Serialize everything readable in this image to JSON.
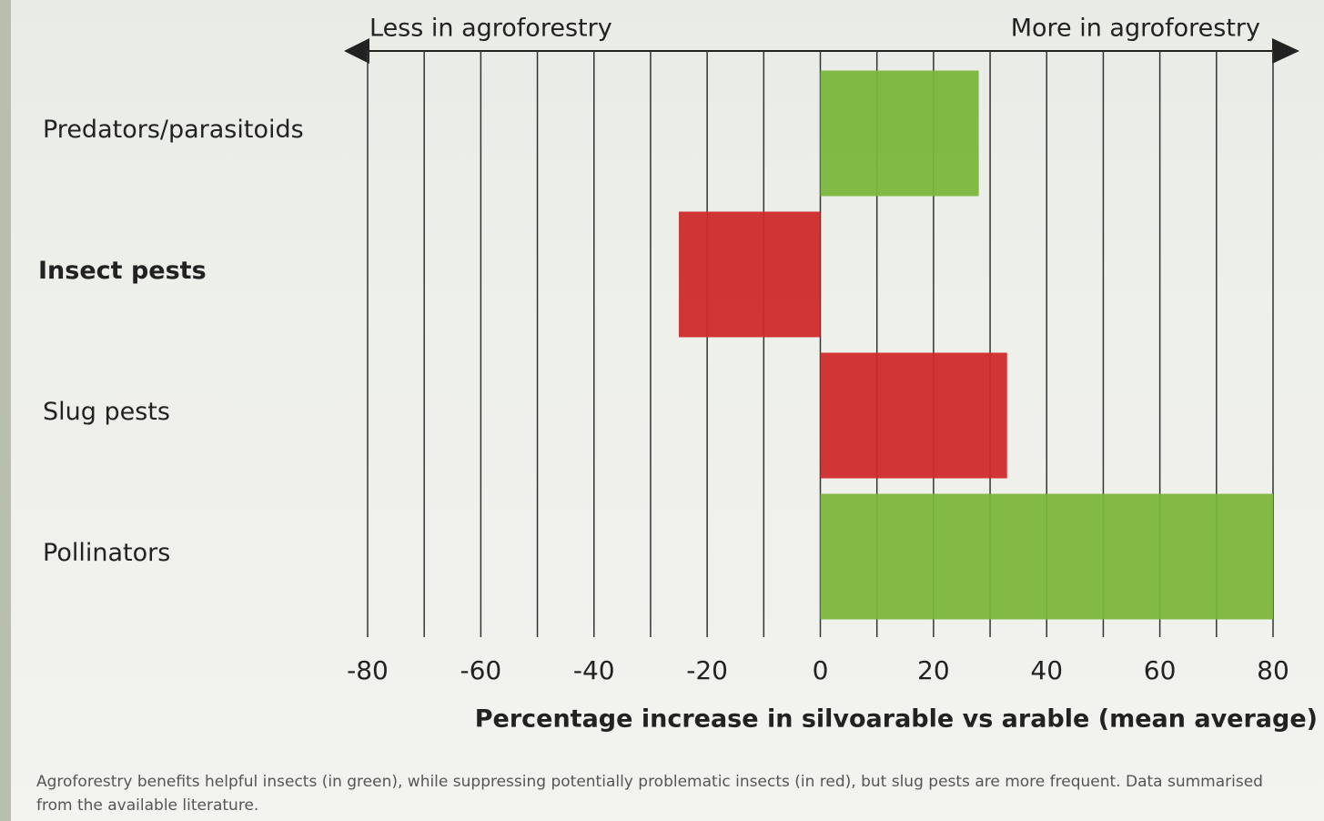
{
  "chart_data": {
    "type": "barh",
    "annotations": [
      "Less in agroforestry",
      "More in agroforestry"
    ],
    "x_label": "Percentage increase in silvoarable vs arable (mean average)",
    "categories": [
      "Predators/parasitoids",
      "Insect pests",
      "Slug pests",
      "Pollinators"
    ],
    "category_bold": [
      false,
      true,
      false,
      false
    ],
    "values": [
      28,
      -25,
      33,
      80
    ],
    "colors": [
      "#7bb63c",
      "#cf2a2b",
      "#cf2a2b",
      "#7bb63c"
    ],
    "xlim": [
      -80,
      80
    ],
    "xticks": [
      -80,
      -60,
      -40,
      -20,
      0,
      20,
      40,
      60,
      80
    ],
    "minor_xticks": [
      -70,
      -50,
      -30,
      -10,
      10,
      30,
      50,
      70
    ],
    "grid": true
  },
  "caption": "Agroforestry benefits helpful insects (in green), while suppressing potentially problematic insects (in red), but slug pests are more frequent. Data summarised from the available literature."
}
